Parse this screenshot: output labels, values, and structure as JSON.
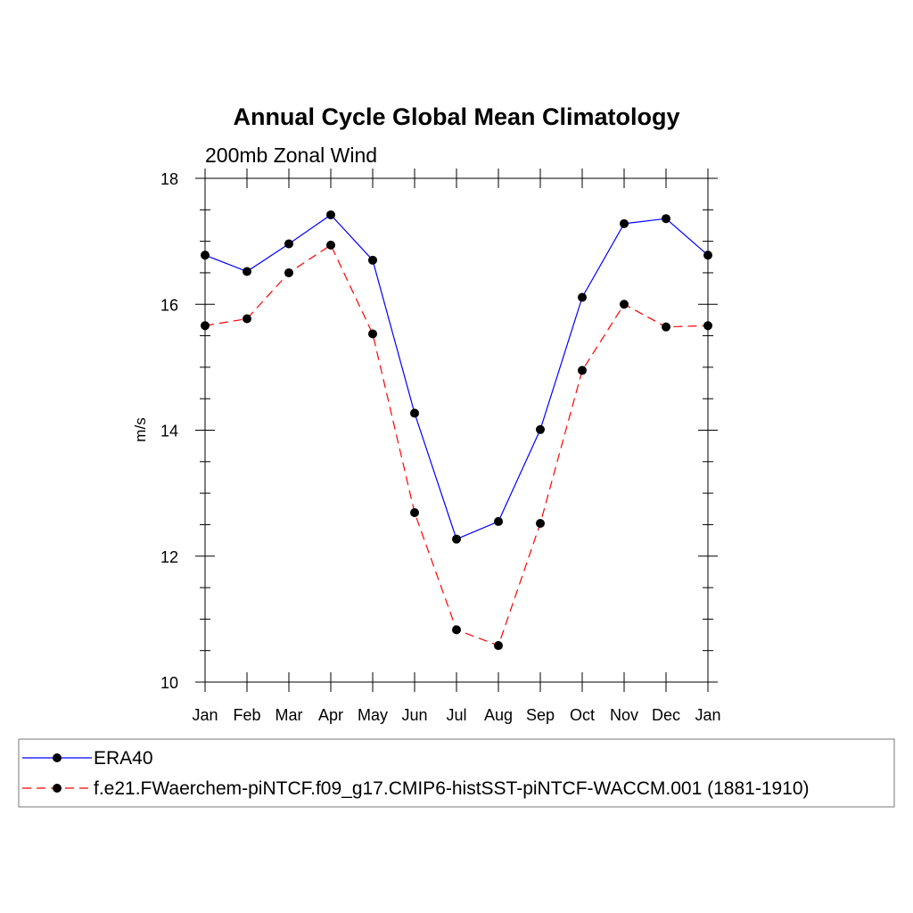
{
  "chart_data": {
    "type": "line",
    "title": "Annual Cycle Global Mean Climatology",
    "subtitle": "200mb Zonal Wind",
    "xlabel": "",
    "ylabel": "m/s",
    "categories": [
      "Jan",
      "Feb",
      "Mar",
      "Apr",
      "May",
      "Jun",
      "Jul",
      "Aug",
      "Sep",
      "Oct",
      "Nov",
      "Dec",
      "Jan"
    ],
    "ylim": [
      10,
      18
    ],
    "yticks": [
      "10",
      "12",
      "14",
      "16",
      "18"
    ],
    "grid": false,
    "legend_position": "bottom",
    "series": [
      {
        "name": "ERA40",
        "color": "#0000ff",
        "dash": "solid",
        "values": [
          16.78,
          16.52,
          16.96,
          17.42,
          16.7,
          14.27,
          12.27,
          12.55,
          14.01,
          16.11,
          17.28,
          17.36,
          16.78
        ]
      },
      {
        "name": "f.e21.FWaerchem-piNTCF.f09_g17.CMIP6-histSST-piNTCF-WACCM.001 (1881-1910)",
        "color": "#ff0000",
        "dash": "dashed",
        "values": [
          15.66,
          15.77,
          16.5,
          16.94,
          15.53,
          12.69,
          10.83,
          10.58,
          12.52,
          14.95,
          16.0,
          15.64,
          15.66
        ]
      }
    ]
  }
}
